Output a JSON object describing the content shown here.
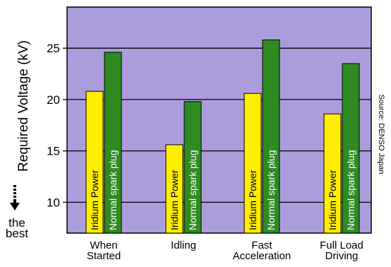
{
  "chart_data": {
    "type": "bar",
    "ylabel": "Required Voltage (kV)",
    "ylim": [
      7.0,
      29.0
    ],
    "yticks": [
      10,
      15,
      20,
      25
    ],
    "grid": true,
    "categories": [
      [
        "When",
        "Started"
      ],
      [
        "Idling"
      ],
      [
        "Fast",
        "Acceleration"
      ],
      [
        "Full Load",
        "Driving"
      ]
    ],
    "series": [
      {
        "name": "Iridium Power",
        "color": "#ffee00",
        "values": [
          20.8,
          15.6,
          20.6,
          18.6
        ]
      },
      {
        "name": "Normal spark plug",
        "color": "#2e8b22",
        "values": [
          24.6,
          19.8,
          25.8,
          23.5
        ]
      }
    ],
    "background_color": "#ab9ddc",
    "source_note": "Source: DENSO Japan",
    "best_label": [
      "the",
      "best"
    ]
  }
}
